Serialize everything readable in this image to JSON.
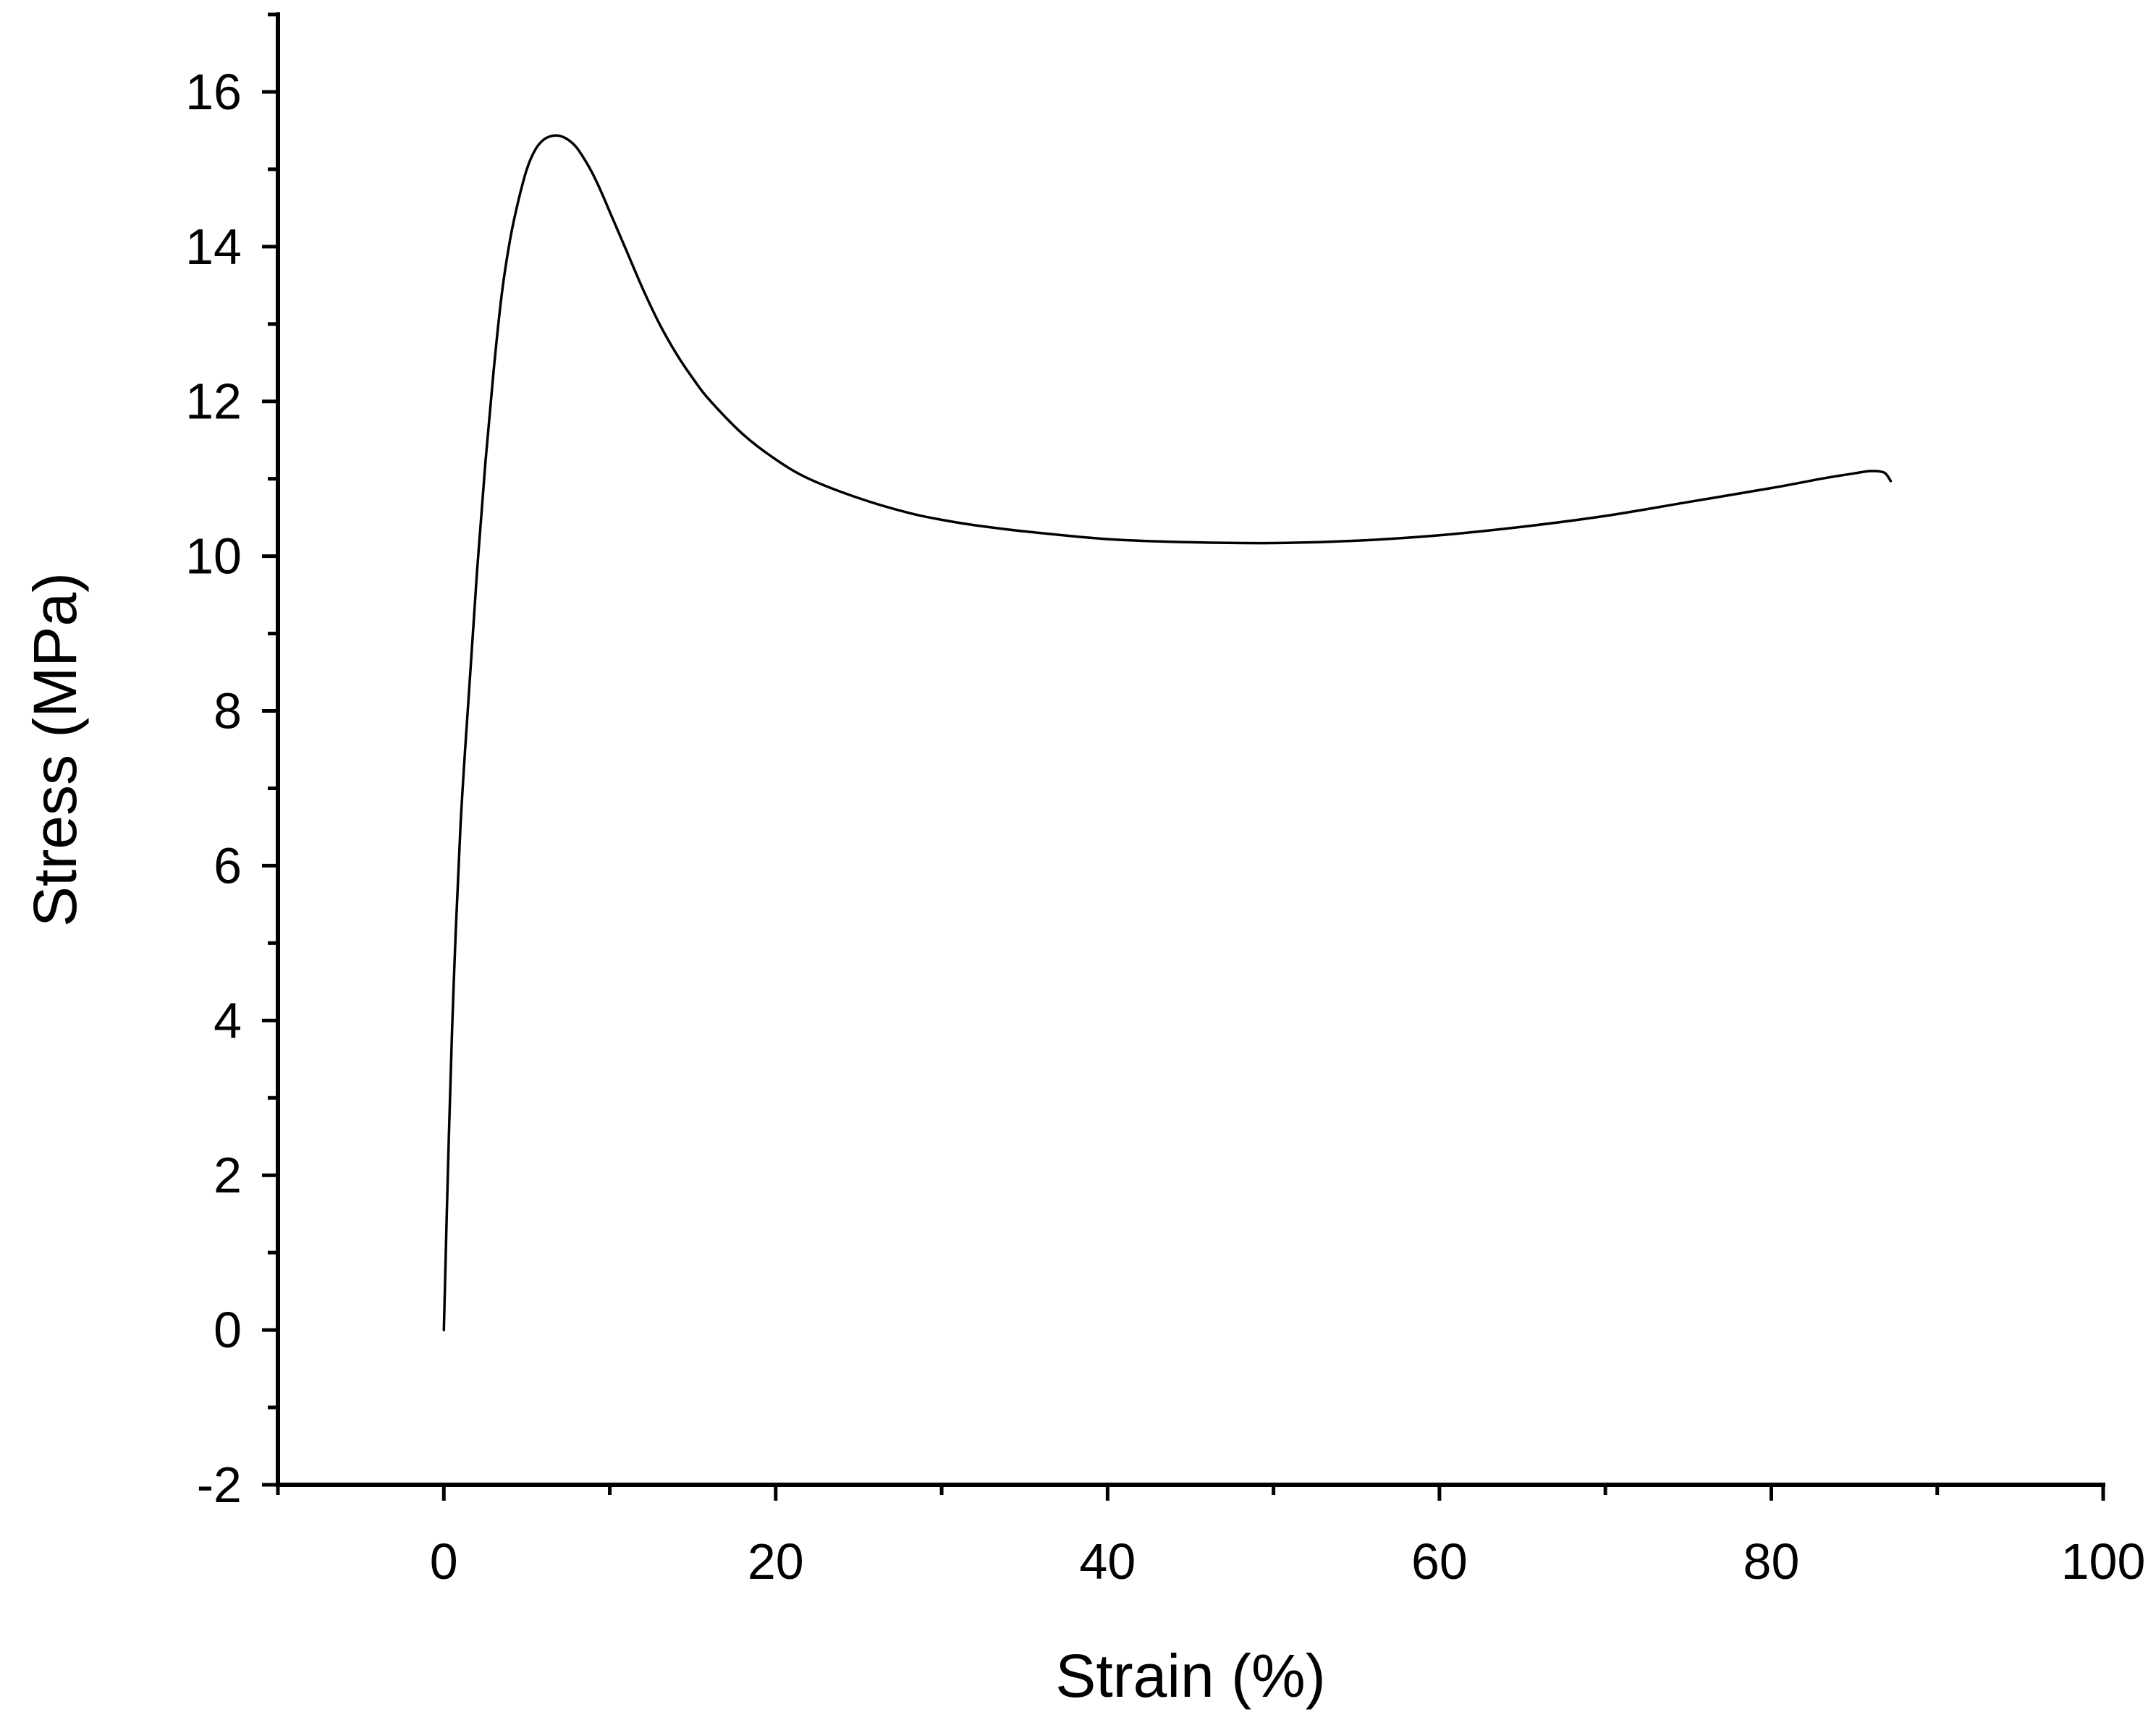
{
  "chart_data": {
    "type": "line",
    "title": "",
    "xlabel": "Strain (%)",
    "ylabel": "Stress (MPa)",
    "xlim": [
      -10,
      100
    ],
    "ylim": [
      -2,
      17
    ],
    "x_ticks": [
      0,
      20,
      40,
      60,
      80,
      100
    ],
    "x_tick_labels": [
      "0",
      "20",
      "40",
      "60",
      "80",
      "100"
    ],
    "x_minor_ticks": [
      -10,
      10,
      30,
      50,
      70,
      90
    ],
    "y_ticks": [
      -2,
      0,
      2,
      4,
      6,
      8,
      10,
      12,
      14,
      16
    ],
    "y_tick_labels": [
      "-2",
      "0",
      "2",
      "4",
      "6",
      "8",
      "10",
      "12",
      "14",
      "16"
    ],
    "y_minor_ticks": [
      -1,
      1,
      3,
      5,
      7,
      9,
      11,
      13,
      15,
      17
    ],
    "grid": false,
    "legend": "none",
    "line_color": "#000000",
    "series": [
      {
        "x": [
          0,
          0.3,
          0.6,
          1,
          1.5,
          2,
          2.5,
          3,
          3.5,
          4,
          4.5,
          5,
          5.5,
          6,
          6.5,
          7,
          7.5,
          8,
          8.5,
          9,
          9.5,
          10,
          11,
          12,
          13,
          14,
          15,
          16,
          18,
          20,
          22,
          25,
          28,
          30,
          32,
          35,
          40,
          45,
          50,
          55,
          60,
          65,
          70,
          75,
          80,
          83,
          85,
          86,
          86.8,
          87.2
        ],
        "y": [
          0,
          2.5,
          4.5,
          6.5,
          8.2,
          9.8,
          11.2,
          12.4,
          13.4,
          14.1,
          14.6,
          15.0,
          15.25,
          15.38,
          15.43,
          15.43,
          15.38,
          15.28,
          15.12,
          14.93,
          14.7,
          14.45,
          13.95,
          13.45,
          13.0,
          12.62,
          12.3,
          12.02,
          11.58,
          11.25,
          11.0,
          10.75,
          10.56,
          10.47,
          10.4,
          10.32,
          10.22,
          10.18,
          10.17,
          10.2,
          10.27,
          10.38,
          10.52,
          10.7,
          10.88,
          11.0,
          11.07,
          11.1,
          11.08,
          10.97
        ]
      }
    ]
  }
}
